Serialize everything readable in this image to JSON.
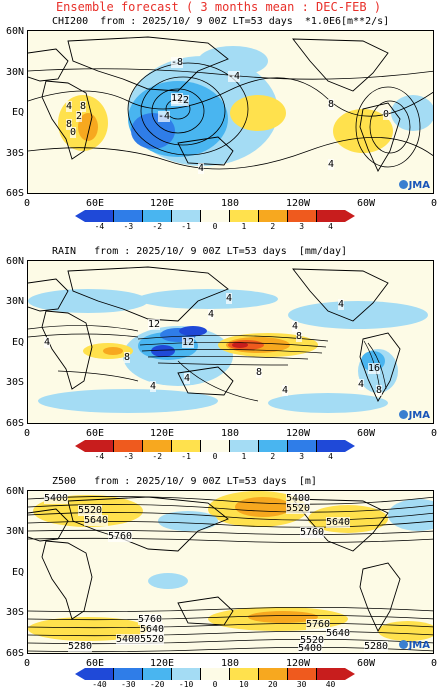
{
  "page_title": "Ensemble forecast ( 3 months mean : DEC-FEB )",
  "lon_labels": [
    "0",
    "60E",
    "120E",
    "180",
    "120W",
    "60W",
    "0"
  ],
  "lat_labels": [
    "60N",
    "30N",
    "EQ",
    "30S",
    "60S"
  ],
  "logo_text": "JMA",
  "panels": [
    {
      "title": "CHI200  from : 2025/10/ 9 00Z LT=53 days  *1.0E6[m**2/s]",
      "colorbar_ticks": [
        "-4",
        "-3",
        "-2",
        "-1",
        "0",
        "1",
        "2",
        "3",
        "4"
      ],
      "colorbar_colors": [
        "#1f49d8",
        "#2f7de8",
        "#49b5f0",
        "#a4dcf4",
        "#fdfbe6",
        "#ffe14d",
        "#f7a81f",
        "#ef5a1e",
        "#c81d1d"
      ],
      "contour_labels": [
        "-8",
        "-4",
        "-12",
        "-4",
        "4",
        "8",
        "8",
        "0",
        "4",
        "12",
        "8",
        "0",
        "4",
        "2"
      ]
    },
    {
      "title": "RAIN   from : 2025/10/ 9 00Z LT=53 days  [mm/day]",
      "colorbar_ticks": [
        "-4",
        "-3",
        "-2",
        "-1",
        "0",
        "1",
        "2",
        "3",
        "4"
      ],
      "colorbar_colors": [
        "#c81d1d",
        "#ef5a1e",
        "#f7a81f",
        "#ffe14d",
        "#fdfbe6",
        "#a4dcf4",
        "#49b5f0",
        "#2f7de8",
        "#1f49d8"
      ],
      "contour_labels": [
        "4",
        "8",
        "12",
        "4",
        "4",
        "8",
        "12",
        "4",
        "8",
        "4",
        "4",
        "4",
        "8",
        "4",
        "16",
        "4"
      ]
    },
    {
      "title": "Z500   from : 2025/10/ 9 00Z LT=53 days  [m]",
      "colorbar_ticks": [
        "-40",
        "-30",
        "-20",
        "-10",
        "0",
        "10",
        "20",
        "30",
        "40"
      ],
      "colorbar_colors": [
        "#1f49d8",
        "#2f7de8",
        "#49b5f0",
        "#a4dcf4",
        "#fdfbe6",
        "#ffe14d",
        "#f7a81f",
        "#ef5a1e",
        "#c81d1d"
      ],
      "contour_labels": [
        "5400",
        "5520",
        "5640",
        "5760",
        "5400",
        "5520",
        "5640",
        "5760",
        "5760",
        "5640",
        "5520",
        "5400",
        "5280",
        "5760",
        "5640",
        "5520",
        "5400",
        "5280"
      ]
    }
  ]
}
